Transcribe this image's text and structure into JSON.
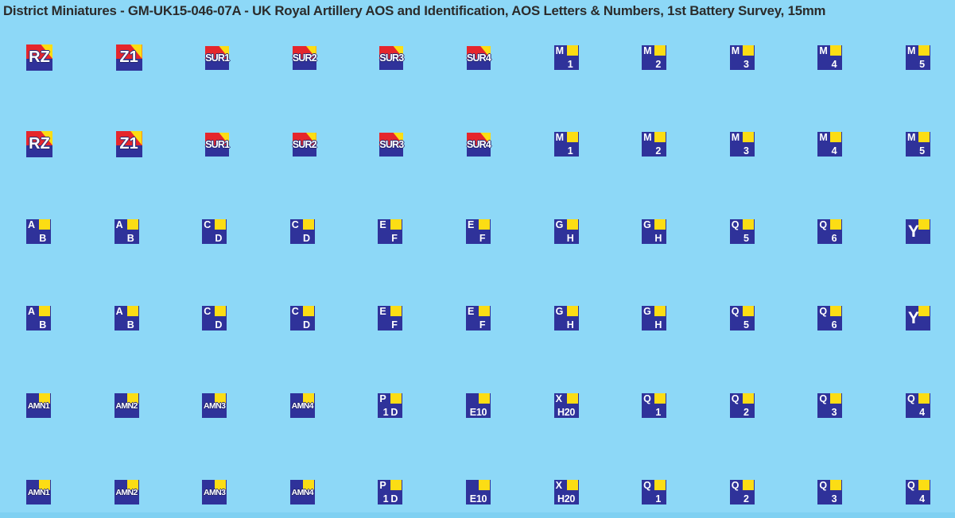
{
  "title": "District Miniatures - GM-UK15-046-07A - UK Royal Artillery AOS and Identification, AOS Letters & Numbers, 1st Battery Survey, 15mm",
  "colors": {
    "background": "#8dd8f7",
    "bottom_edge": "#7fd0f2",
    "badge_navy": "#2f329a",
    "badge_red": "#e5262c",
    "badge_yellow": "#fcdd14",
    "badge_text": "#ffffff",
    "title_text": "#2b2b2b"
  },
  "sheet": {
    "rows": [
      {
        "badges": [
          {
            "kind": "stripe",
            "size": "lg",
            "text": "RZ"
          },
          {
            "kind": "stripe",
            "size": "lg",
            "text": "Z1"
          },
          {
            "kind": "stripe",
            "size": "sm",
            "text": "SUR1"
          },
          {
            "kind": "stripe",
            "size": "sm",
            "text": "SUR2"
          },
          {
            "kind": "stripe",
            "size": "sm",
            "text": "SUR3"
          },
          {
            "kind": "stripe",
            "size": "sm",
            "text": "SUR4"
          },
          {
            "kind": "corner",
            "tl": "M",
            "bottom": "1"
          },
          {
            "kind": "corner",
            "tl": "M",
            "bottom": "2"
          },
          {
            "kind": "corner",
            "tl": "M",
            "bottom": "3"
          },
          {
            "kind": "corner",
            "tl": "M",
            "bottom": "4"
          },
          {
            "kind": "corner",
            "tl": "M",
            "bottom": "5"
          }
        ]
      },
      {
        "badges": [
          {
            "kind": "stripe",
            "size": "lg",
            "text": "RZ"
          },
          {
            "kind": "stripe",
            "size": "lg",
            "text": "Z1"
          },
          {
            "kind": "stripe",
            "size": "sm",
            "text": "SUR1"
          },
          {
            "kind": "stripe",
            "size": "sm",
            "text": "SUR2"
          },
          {
            "kind": "stripe",
            "size": "sm",
            "text": "SUR3"
          },
          {
            "kind": "stripe",
            "size": "sm",
            "text": "SUR4"
          },
          {
            "kind": "corner",
            "tl": "M",
            "bottom": "1"
          },
          {
            "kind": "corner",
            "tl": "M",
            "bottom": "2"
          },
          {
            "kind": "corner",
            "tl": "M",
            "bottom": "3"
          },
          {
            "kind": "corner",
            "tl": "M",
            "bottom": "4"
          },
          {
            "kind": "corner",
            "tl": "M",
            "bottom": "5"
          }
        ]
      },
      {
        "badges": [
          {
            "kind": "corner",
            "tl": "A",
            "bottom": "B"
          },
          {
            "kind": "corner",
            "tl": "A",
            "bottom": "B"
          },
          {
            "kind": "corner",
            "tl": "C",
            "bottom": "D"
          },
          {
            "kind": "corner",
            "tl": "C",
            "bottom": "D"
          },
          {
            "kind": "corner",
            "tl": "E",
            "bottom": "F"
          },
          {
            "kind": "corner",
            "tl": "E",
            "bottom": "F"
          },
          {
            "kind": "corner",
            "tl": "G",
            "bottom": "H"
          },
          {
            "kind": "corner",
            "tl": "G",
            "bottom": "H"
          },
          {
            "kind": "corner",
            "tl": "Q",
            "bottom": "5"
          },
          {
            "kind": "corner",
            "tl": "Q",
            "bottom": "6"
          },
          {
            "kind": "corner-big",
            "text": "Y"
          }
        ]
      },
      {
        "badges": [
          {
            "kind": "corner",
            "tl": "A",
            "bottom": "B"
          },
          {
            "kind": "corner",
            "tl": "A",
            "bottom": "B"
          },
          {
            "kind": "corner",
            "tl": "C",
            "bottom": "D"
          },
          {
            "kind": "corner",
            "tl": "C",
            "bottom": "D"
          },
          {
            "kind": "corner",
            "tl": "E",
            "bottom": "F"
          },
          {
            "kind": "corner",
            "tl": "E",
            "bottom": "F"
          },
          {
            "kind": "corner",
            "tl": "G",
            "bottom": "H"
          },
          {
            "kind": "corner",
            "tl": "G",
            "bottom": "H"
          },
          {
            "kind": "corner",
            "tl": "Q",
            "bottom": "5"
          },
          {
            "kind": "corner",
            "tl": "Q",
            "bottom": "6"
          },
          {
            "kind": "corner-big",
            "text": "Y"
          }
        ]
      },
      {
        "badges": [
          {
            "kind": "corner-mid",
            "text": "AMN1"
          },
          {
            "kind": "corner-mid",
            "text": "AMN2"
          },
          {
            "kind": "corner-mid",
            "text": "AMN3"
          },
          {
            "kind": "corner-mid",
            "text": "AMN4"
          },
          {
            "kind": "corner",
            "tl": "P",
            "bottom": "1 D",
            "bottom_style": "span"
          },
          {
            "kind": "corner",
            "bottom": "E10",
            "bottom_style": "span"
          },
          {
            "kind": "corner",
            "tl": "X",
            "bottom": "H20",
            "bottom_style": "span"
          },
          {
            "kind": "corner",
            "tl": "Q",
            "bottom": "1"
          },
          {
            "kind": "corner",
            "tl": "Q",
            "bottom": "2"
          },
          {
            "kind": "corner",
            "tl": "Q",
            "bottom": "3"
          },
          {
            "kind": "corner",
            "tl": "Q",
            "bottom": "4"
          }
        ]
      },
      {
        "badges": [
          {
            "kind": "corner-mid",
            "text": "AMN1"
          },
          {
            "kind": "corner-mid",
            "text": "AMN2"
          },
          {
            "kind": "corner-mid",
            "text": "AMN3"
          },
          {
            "kind": "corner-mid",
            "text": "AMN4"
          },
          {
            "kind": "corner",
            "tl": "P",
            "bottom": "1 D",
            "bottom_style": "span"
          },
          {
            "kind": "corner",
            "bottom": "E10",
            "bottom_style": "span"
          },
          {
            "kind": "corner",
            "tl": "X",
            "bottom": "H20",
            "bottom_style": "span"
          },
          {
            "kind": "corner",
            "tl": "Q",
            "bottom": "1"
          },
          {
            "kind": "corner",
            "tl": "Q",
            "bottom": "2"
          },
          {
            "kind": "corner",
            "tl": "Q",
            "bottom": "3"
          },
          {
            "kind": "corner",
            "tl": "Q",
            "bottom": "4"
          }
        ]
      }
    ]
  }
}
